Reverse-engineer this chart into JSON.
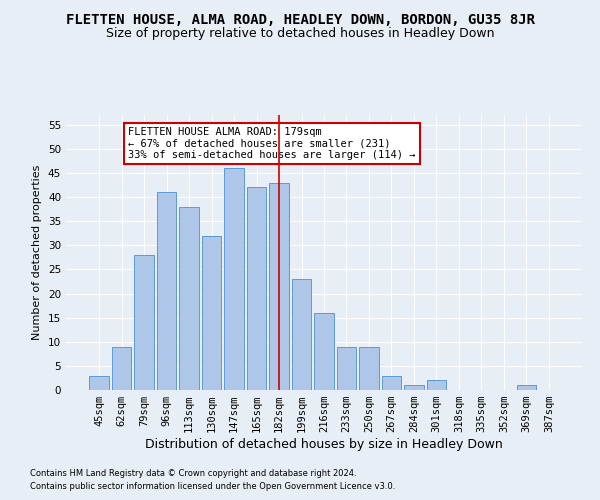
{
  "title": "FLETTEN HOUSE, ALMA ROAD, HEADLEY DOWN, BORDON, GU35 8JR",
  "subtitle": "Size of property relative to detached houses in Headley Down",
  "xlabel": "Distribution of detached houses by size in Headley Down",
  "ylabel": "Number of detached properties",
  "footnote1": "Contains HM Land Registry data © Crown copyright and database right 2024.",
  "footnote2": "Contains public sector information licensed under the Open Government Licence v3.0.",
  "bar_labels": [
    "45sqm",
    "62sqm",
    "79sqm",
    "96sqm",
    "113sqm",
    "130sqm",
    "147sqm",
    "165sqm",
    "182sqm",
    "199sqm",
    "216sqm",
    "233sqm",
    "250sqm",
    "267sqm",
    "284sqm",
    "301sqm",
    "318sqm",
    "335sqm",
    "352sqm",
    "369sqm",
    "387sqm"
  ],
  "bar_values": [
    3,
    9,
    28,
    41,
    38,
    32,
    46,
    42,
    43,
    23,
    16,
    9,
    9,
    3,
    1,
    2,
    0,
    0,
    0,
    1,
    0
  ],
  "bar_color": "#aec6e8",
  "bar_edge_color": "#5b9bd5",
  "vline_x": 8,
  "vline_color": "#cc0000",
  "annotation_text": "FLETTEN HOUSE ALMA ROAD: 179sqm\n← 67% of detached houses are smaller (231)\n33% of semi-detached houses are larger (114) →",
  "annotation_box_color": "#ffffff",
  "annotation_box_edge": "#cc0000",
  "ylim": [
    0,
    57
  ],
  "yticks": [
    0,
    5,
    10,
    15,
    20,
    25,
    30,
    35,
    40,
    45,
    50,
    55
  ],
  "background_color": "#e8eef5",
  "grid_color": "#ffffff",
  "title_fontsize": 10,
  "subtitle_fontsize": 9,
  "xlabel_fontsize": 9,
  "ylabel_fontsize": 8,
  "tick_fontsize": 7.5,
  "annot_fontsize": 7.5
}
